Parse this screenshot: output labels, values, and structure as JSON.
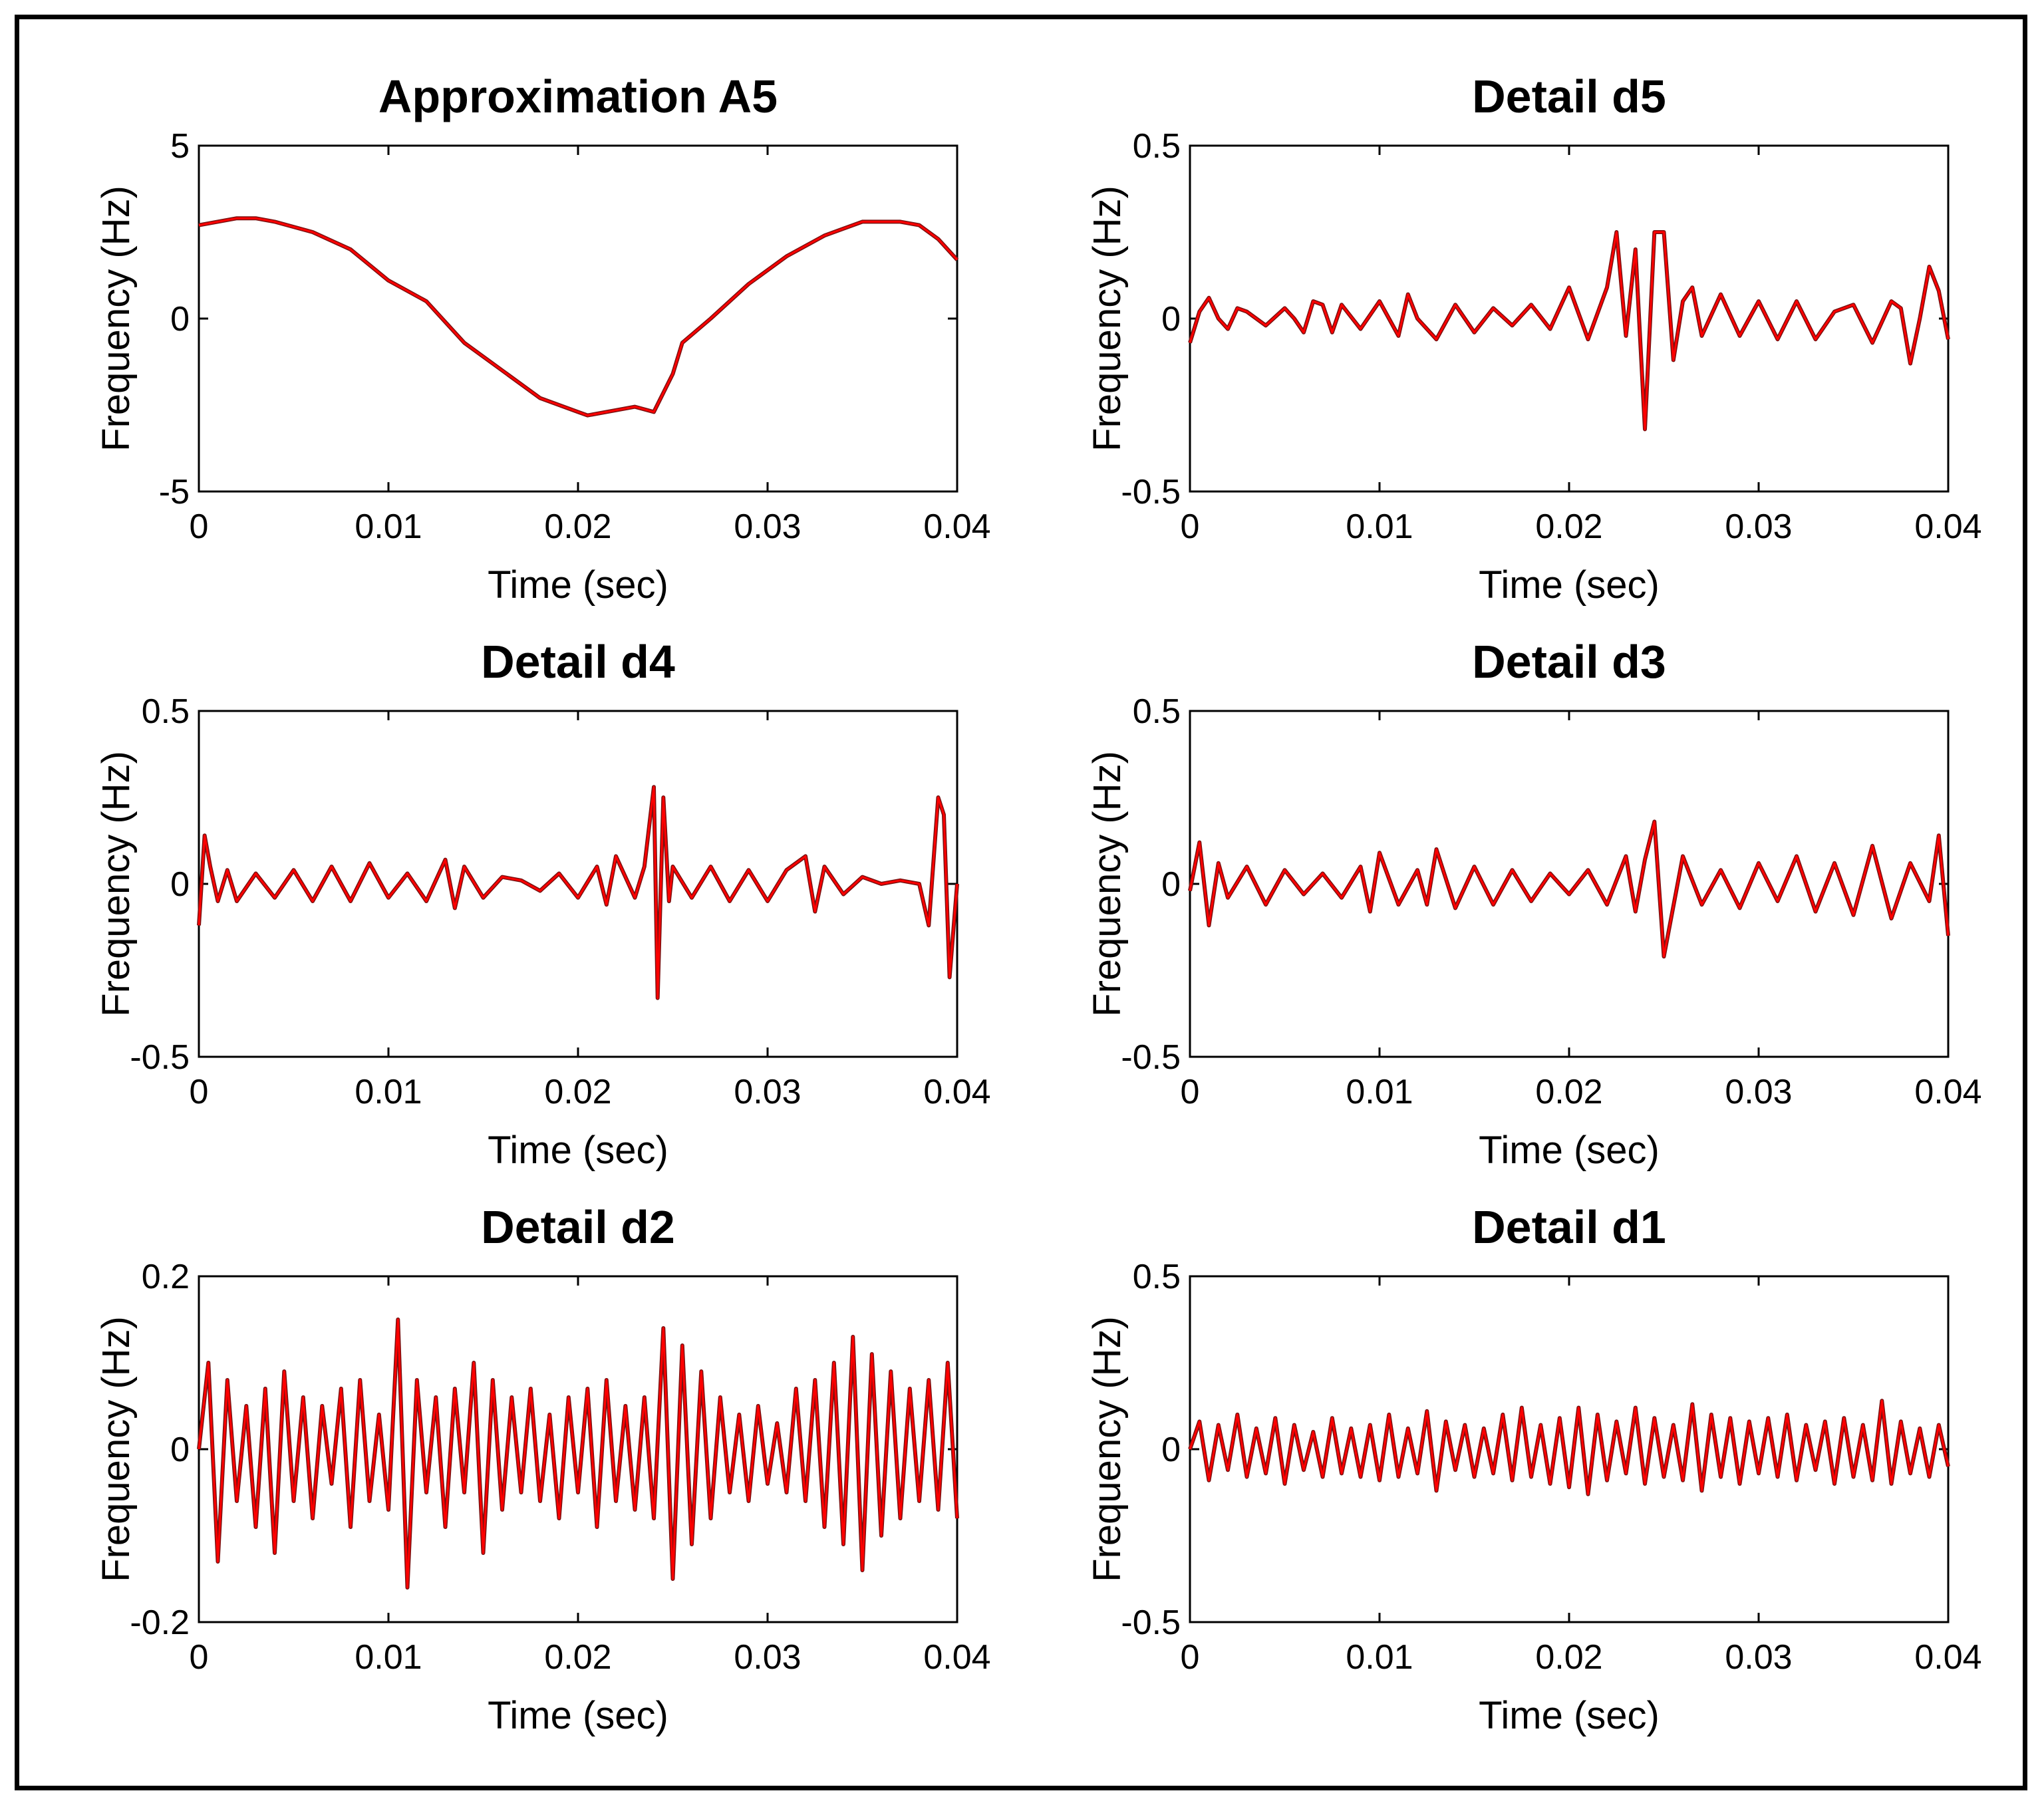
{
  "figure": {
    "panel_count": 6,
    "colors": {
      "signal_dark": "#7a1010",
      "signal_red": "#ff0000",
      "axis": "#000000"
    }
  },
  "chart_data": [
    {
      "type": "line",
      "title": "Approximation A5",
      "xlabel": "Time (sec)",
      "ylabel": "Frequency (Hz)",
      "xlim": [
        0,
        0.04
      ],
      "ylim": [
        -5,
        5
      ],
      "xticks": [
        "0",
        "0.01",
        "0.02",
        "0.03",
        "0.04"
      ],
      "yticks": [
        "-5",
        "0",
        "5"
      ],
      "series": [
        {
          "name": "A5",
          "x": [
            0,
            0.002,
            0.003,
            0.004,
            0.006,
            0.008,
            0.01,
            0.012,
            0.014,
            0.016,
            0.018,
            0.02,
            0.0205,
            0.022,
            0.023,
            0.024,
            0.025,
            0.0255,
            0.027,
            0.029,
            0.031,
            0.033,
            0.035,
            0.037,
            0.038,
            0.039,
            0.04
          ],
          "y": [
            2.7,
            2.9,
            2.9,
            2.8,
            2.5,
            2.0,
            1.1,
            0.5,
            -0.7,
            -1.5,
            -2.3,
            -2.7,
            -2.8,
            -2.65,
            -2.55,
            -2.7,
            -1.6,
            -0.7,
            0.0,
            1.0,
            1.8,
            2.4,
            2.8,
            2.8,
            2.7,
            2.3,
            1.7
          ]
        }
      ]
    },
    {
      "type": "line",
      "title": "Detail d5",
      "xlabel": "Time (sec)",
      "ylabel": "Frequency (Hz)",
      "xlim": [
        0,
        0.04
      ],
      "ylim": [
        -0.5,
        0.5
      ],
      "xticks": [
        "0",
        "0.01",
        "0.02",
        "0.03",
        "0.04"
      ],
      "yticks": [
        "-0.5",
        "0",
        "0.5"
      ],
      "series": [
        {
          "name": "d5",
          "x": [
            0,
            0.0005,
            0.001,
            0.0015,
            0.002,
            0.0025,
            0.003,
            0.004,
            0.005,
            0.0055,
            0.006,
            0.0065,
            0.007,
            0.0075,
            0.008,
            0.009,
            0.01,
            0.011,
            0.0115,
            0.012,
            0.013,
            0.014,
            0.015,
            0.016,
            0.017,
            0.018,
            0.019,
            0.02,
            0.021,
            0.022,
            0.0225,
            0.023,
            0.0235,
            0.024,
            0.0245,
            0.025,
            0.0255,
            0.026,
            0.0265,
            0.027,
            0.028,
            0.029,
            0.03,
            0.031,
            0.032,
            0.033,
            0.034,
            0.035,
            0.036,
            0.037,
            0.0375,
            0.038,
            0.0385,
            0.039,
            0.0395,
            0.04
          ],
          "y": [
            -0.07,
            0.02,
            0.06,
            0.0,
            -0.03,
            0.03,
            0.02,
            -0.02,
            0.03,
            0.0,
            -0.04,
            0.05,
            0.04,
            -0.04,
            0.04,
            -0.03,
            0.05,
            -0.05,
            0.07,
            0.0,
            -0.06,
            0.04,
            -0.04,
            0.03,
            -0.02,
            0.04,
            -0.03,
            0.09,
            -0.06,
            0.09,
            0.25,
            -0.05,
            0.2,
            -0.32,
            0.25,
            0.25,
            -0.12,
            0.05,
            0.09,
            -0.05,
            0.07,
            -0.05,
            0.05,
            -0.06,
            0.05,
            -0.06,
            0.02,
            0.04,
            -0.07,
            0.05,
            0.03,
            -0.13,
            0.0,
            0.15,
            0.08,
            -0.06
          ]
        }
      ]
    },
    {
      "type": "line",
      "title": "Detail d4",
      "xlabel": "Time (sec)",
      "ylabel": "Frequency (Hz)",
      "xlim": [
        0,
        0.04
      ],
      "ylim": [
        -0.5,
        0.5
      ],
      "xticks": [
        "0",
        "0.01",
        "0.02",
        "0.03",
        "0.04"
      ],
      "yticks": [
        "-0.5",
        "0",
        "0.5"
      ],
      "series": [
        {
          "name": "d4",
          "x": [
            0,
            0.0003,
            0.0006,
            0.001,
            0.0015,
            0.002,
            0.003,
            0.004,
            0.005,
            0.006,
            0.007,
            0.008,
            0.009,
            0.01,
            0.011,
            0.012,
            0.013,
            0.0135,
            0.014,
            0.015,
            0.016,
            0.017,
            0.018,
            0.019,
            0.02,
            0.021,
            0.0215,
            0.022,
            0.023,
            0.0235,
            0.024,
            0.0242,
            0.0245,
            0.0248,
            0.025,
            0.026,
            0.027,
            0.028,
            0.029,
            0.03,
            0.031,
            0.032,
            0.0325,
            0.033,
            0.034,
            0.035,
            0.036,
            0.037,
            0.038,
            0.0385,
            0.039,
            0.0393,
            0.0396,
            0.04
          ],
          "y": [
            -0.12,
            0.14,
            0.05,
            -0.05,
            0.04,
            -0.05,
            0.03,
            -0.04,
            0.04,
            -0.05,
            0.05,
            -0.05,
            0.06,
            -0.04,
            0.03,
            -0.05,
            0.07,
            -0.07,
            0.05,
            -0.04,
            0.02,
            0.01,
            -0.02,
            0.03,
            -0.04,
            0.05,
            -0.06,
            0.08,
            -0.04,
            0.05,
            0.28,
            -0.33,
            0.25,
            -0.05,
            0.05,
            -0.04,
            0.05,
            -0.05,
            0.04,
            -0.05,
            0.04,
            0.08,
            -0.08,
            0.05,
            -0.03,
            0.02,
            0.0,
            0.01,
            0.0,
            -0.12,
            0.25,
            0.2,
            -0.27,
            0.0
          ]
        }
      ]
    },
    {
      "type": "line",
      "title": "Detail d3",
      "xlabel": "Time (sec)",
      "ylabel": "Frequency (Hz)",
      "xlim": [
        0,
        0.04
      ],
      "ylim": [
        -0.5,
        0.5
      ],
      "xticks": [
        "0",
        "0.01",
        "0.02",
        "0.03",
        "0.04"
      ],
      "yticks": [
        "-0.5",
        "0",
        "0.5"
      ],
      "series": [
        {
          "name": "d3",
          "x": [
            0,
            0.0005,
            0.001,
            0.0015,
            0.002,
            0.003,
            0.004,
            0.005,
            0.006,
            0.007,
            0.008,
            0.009,
            0.0095,
            0.01,
            0.011,
            0.012,
            0.0125,
            0.013,
            0.014,
            0.015,
            0.016,
            0.017,
            0.018,
            0.019,
            0.02,
            0.021,
            0.022,
            0.023,
            0.0235,
            0.024,
            0.0245,
            0.025,
            0.026,
            0.027,
            0.028,
            0.029,
            0.03,
            0.031,
            0.032,
            0.033,
            0.034,
            0.035,
            0.036,
            0.037,
            0.038,
            0.039,
            0.0395,
            0.04
          ],
          "y": [
            -0.02,
            0.12,
            -0.12,
            0.06,
            -0.04,
            0.05,
            -0.06,
            0.04,
            -0.03,
            0.03,
            -0.04,
            0.05,
            -0.08,
            0.09,
            -0.06,
            0.04,
            -0.06,
            0.1,
            -0.07,
            0.05,
            -0.06,
            0.04,
            -0.05,
            0.03,
            -0.03,
            0.04,
            -0.06,
            0.08,
            -0.08,
            0.07,
            0.18,
            -0.21,
            0.08,
            -0.06,
            0.04,
            -0.07,
            0.06,
            -0.05,
            0.08,
            -0.08,
            0.06,
            -0.09,
            0.11,
            -0.1,
            0.06,
            -0.05,
            0.14,
            -0.15
          ]
        }
      ]
    },
    {
      "type": "line",
      "title": "Detail d2",
      "xlabel": "Time (sec)",
      "ylabel": "Frequency (Hz)",
      "xlim": [
        0,
        0.04
      ],
      "ylim": [
        -0.2,
        0.2
      ],
      "xticks": [
        "0",
        "0.01",
        "0.02",
        "0.03",
        "0.04"
      ],
      "yticks": [
        "-0.2",
        "0",
        "0.2"
      ],
      "series": [
        {
          "name": "d2",
          "x": [
            0,
            0.0005,
            0.001,
            0.0015,
            0.002,
            0.0025,
            0.003,
            0.0035,
            0.004,
            0.0045,
            0.005,
            0.0055,
            0.006,
            0.0065,
            0.007,
            0.0075,
            0.008,
            0.0085,
            0.009,
            0.0095,
            0.01,
            0.0105,
            0.011,
            0.0115,
            0.012,
            0.0125,
            0.013,
            0.0135,
            0.014,
            0.0145,
            0.015,
            0.0155,
            0.016,
            0.0165,
            0.017,
            0.0175,
            0.018,
            0.0185,
            0.019,
            0.0195,
            0.02,
            0.0205,
            0.021,
            0.0215,
            0.022,
            0.0225,
            0.023,
            0.0235,
            0.024,
            0.0245,
            0.025,
            0.0255,
            0.026,
            0.0265,
            0.027,
            0.0275,
            0.028,
            0.0285,
            0.029,
            0.0295,
            0.03,
            0.0305,
            0.031,
            0.0315,
            0.032,
            0.0325,
            0.033,
            0.0335,
            0.034,
            0.0345,
            0.035,
            0.0355,
            0.036,
            0.0365,
            0.037,
            0.0375,
            0.038,
            0.0385,
            0.039,
            0.0395,
            0.04
          ],
          "y": [
            0.0,
            0.1,
            -0.13,
            0.08,
            -0.06,
            0.05,
            -0.09,
            0.07,
            -0.12,
            0.09,
            -0.06,
            0.06,
            -0.08,
            0.05,
            -0.04,
            0.07,
            -0.09,
            0.08,
            -0.06,
            0.04,
            -0.07,
            0.15,
            -0.16,
            0.08,
            -0.05,
            0.06,
            -0.09,
            0.07,
            -0.05,
            0.1,
            -0.12,
            0.08,
            -0.07,
            0.06,
            -0.05,
            0.07,
            -0.06,
            0.04,
            -0.08,
            0.06,
            -0.05,
            0.07,
            -0.09,
            0.08,
            -0.06,
            0.05,
            -0.07,
            0.06,
            -0.08,
            0.14,
            -0.15,
            0.12,
            -0.11,
            0.09,
            -0.08,
            0.06,
            -0.05,
            0.04,
            -0.06,
            0.05,
            -0.04,
            0.03,
            -0.05,
            0.07,
            -0.06,
            0.08,
            -0.09,
            0.1,
            -0.11,
            0.13,
            -0.14,
            0.11,
            -0.1,
            0.09,
            -0.08,
            0.07,
            -0.06,
            0.08,
            -0.07,
            0.1,
            -0.08
          ]
        }
      ]
    },
    {
      "type": "line",
      "title": "Detail d1",
      "xlabel": "Time (sec)",
      "ylabel": "Frequency (Hz)",
      "xlim": [
        0,
        0.04
      ],
      "ylim": [
        -0.5,
        0.5
      ],
      "xticks": [
        "0",
        "0.01",
        "0.02",
        "0.03",
        "0.04"
      ],
      "yticks": [
        "-0.5",
        "0",
        "0.5"
      ],
      "series": [
        {
          "name": "d1",
          "x": [
            0,
            0.0005,
            0.001,
            0.0015,
            0.002,
            0.0025,
            0.003,
            0.0035,
            0.004,
            0.0045,
            0.005,
            0.0055,
            0.006,
            0.0065,
            0.007,
            0.0075,
            0.008,
            0.0085,
            0.009,
            0.0095,
            0.01,
            0.0105,
            0.011,
            0.0115,
            0.012,
            0.0125,
            0.013,
            0.0135,
            0.014,
            0.0145,
            0.015,
            0.0155,
            0.016,
            0.0165,
            0.017,
            0.0175,
            0.018,
            0.0185,
            0.019,
            0.0195,
            0.02,
            0.0205,
            0.021,
            0.0215,
            0.022,
            0.0225,
            0.023,
            0.0235,
            0.024,
            0.0245,
            0.025,
            0.0255,
            0.026,
            0.0265,
            0.027,
            0.0275,
            0.028,
            0.0285,
            0.029,
            0.0295,
            0.03,
            0.0305,
            0.031,
            0.0315,
            0.032,
            0.0325,
            0.033,
            0.0335,
            0.034,
            0.0345,
            0.035,
            0.0355,
            0.036,
            0.0365,
            0.037,
            0.0375,
            0.038,
            0.0385,
            0.039,
            0.0395,
            0.04
          ],
          "y": [
            0.0,
            0.08,
            -0.09,
            0.07,
            -0.06,
            0.1,
            -0.08,
            0.06,
            -0.07,
            0.09,
            -0.1,
            0.07,
            -0.06,
            0.05,
            -0.08,
            0.09,
            -0.07,
            0.06,
            -0.08,
            0.07,
            -0.09,
            0.1,
            -0.08,
            0.06,
            -0.07,
            0.11,
            -0.12,
            0.08,
            -0.06,
            0.07,
            -0.08,
            0.06,
            -0.07,
            0.1,
            -0.09,
            0.12,
            -0.08,
            0.07,
            -0.1,
            0.09,
            -0.11,
            0.12,
            -0.13,
            0.1,
            -0.09,
            0.08,
            -0.07,
            0.12,
            -0.1,
            0.09,
            -0.08,
            0.07,
            -0.09,
            0.13,
            -0.12,
            0.1,
            -0.08,
            0.09,
            -0.1,
            0.08,
            -0.07,
            0.09,
            -0.08,
            0.1,
            -0.09,
            0.07,
            -0.06,
            0.08,
            -0.1,
            0.09,
            -0.08,
            0.07,
            -0.09,
            0.14,
            -0.1,
            0.08,
            -0.07,
            0.06,
            -0.08,
            0.07,
            -0.05
          ]
        }
      ]
    }
  ]
}
